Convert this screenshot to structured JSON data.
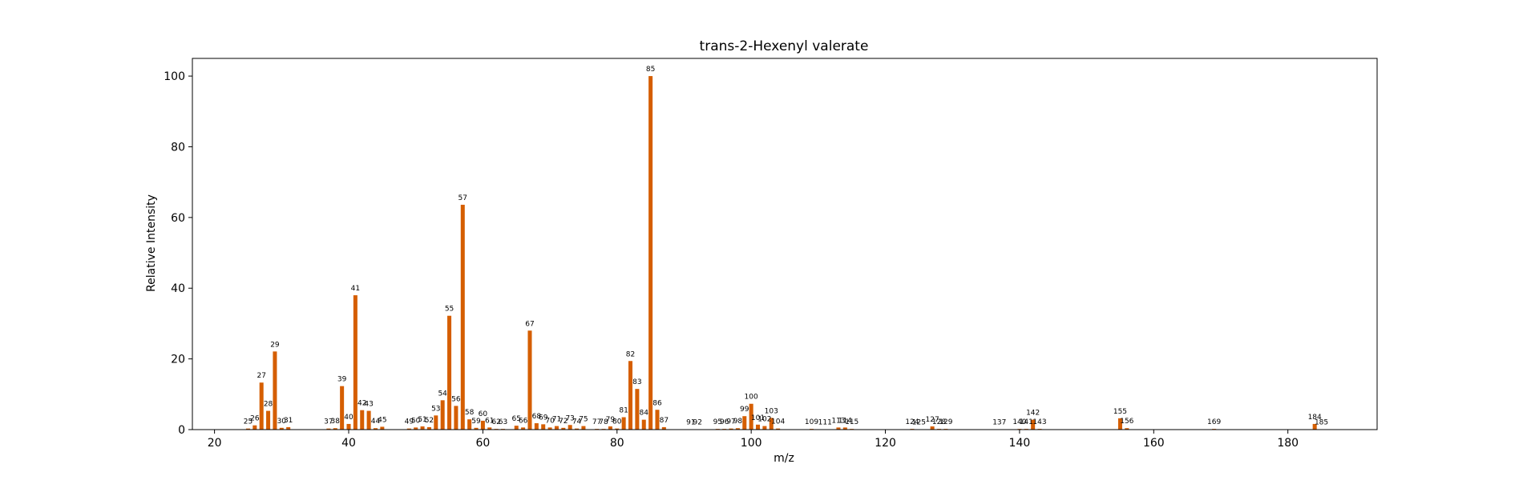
{
  "chart_data": {
    "type": "bar",
    "title": "trans-2-Hexenyl valerate",
    "xlabel": "m/z",
    "ylabel": "Relative Intensity",
    "xlim": [
      16.7,
      193.3
    ],
    "ylim": [
      0,
      105
    ],
    "xticks": [
      20,
      40,
      60,
      80,
      100,
      120,
      140,
      160,
      180
    ],
    "yticks": [
      0,
      20,
      40,
      60,
      80,
      100
    ],
    "grid": false,
    "bar_color": "#d55e00",
    "series": [
      {
        "x": [
          25,
          26,
          27,
          28,
          29,
          30,
          31,
          37,
          38,
          39,
          40,
          41,
          42,
          43,
          44,
          45,
          49,
          50,
          51,
          52,
          53,
          54,
          55,
          56,
          57,
          58,
          59,
          60,
          61,
          62,
          63,
          65,
          66,
          67,
          68,
          69,
          70,
          71,
          72,
          73,
          74,
          75,
          77,
          78,
          79,
          80,
          81,
          82,
          83,
          84,
          85,
          86,
          87,
          91,
          92,
          95,
          96,
          97,
          98,
          99,
          100,
          101,
          102,
          103,
          104,
          109,
          111,
          113,
          114,
          115,
          124,
          125,
          127,
          128,
          129,
          137,
          140,
          141,
          142,
          143,
          155,
          156,
          169,
          184,
          185
        ],
        "values": [
          0.3,
          1.2,
          13.3,
          5.3,
          22.1,
          0.5,
          0.7,
          0.3,
          0.4,
          12.3,
          1.6,
          38.0,
          5.5,
          5.3,
          0.4,
          0.8,
          0.3,
          0.6,
          0.9,
          0.7,
          4.0,
          8.3,
          32.2,
          6.7,
          63.6,
          2.9,
          0.5,
          2.5,
          0.6,
          0.2,
          0.2,
          1.1,
          0.6,
          28.0,
          1.8,
          1.5,
          0.6,
          1.0,
          0.5,
          1.3,
          0.3,
          1.0,
          0.2,
          0.2,
          0.9,
          0.3,
          3.5,
          19.4,
          11.5,
          2.8,
          100,
          5.6,
          0.7,
          0.1,
          0.1,
          0.2,
          0.2,
          0.3,
          0.4,
          3.8,
          7.3,
          1.4,
          1.0,
          3.3,
          0.3,
          0.2,
          0.1,
          0.6,
          0.6,
          0.2,
          0.2,
          0.1,
          0.9,
          0.2,
          0.2,
          0.1,
          0.2,
          0.2,
          2.8,
          0.2,
          3.2,
          0.4,
          0.2,
          1.6,
          0.1
        ]
      }
    ]
  }
}
